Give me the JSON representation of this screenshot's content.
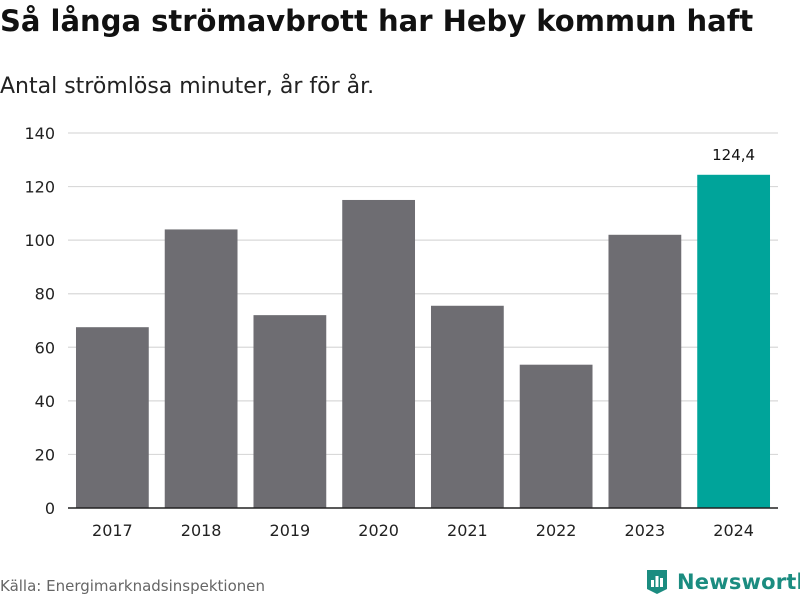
{
  "header": {
    "title": "Så långa strömavbrott har Heby kommun haft",
    "subtitle": "Antal strömlösa minuter, år för år."
  },
  "footer": {
    "source": "Källa: Energimarknadsinspektionen",
    "brand": "Newsworthy"
  },
  "colors": {
    "default_bar": "#6e6d72",
    "highlight_bar": "#00a49a",
    "grid": "#d9d9d9",
    "axis": "#222222"
  },
  "chart_data": {
    "type": "bar",
    "title": "Så långa strömavbrott har Heby kommun haft",
    "subtitle": "Antal strömlösa minuter, år för år.",
    "xlabel": "",
    "ylabel": "",
    "categories": [
      "2017",
      "2018",
      "2019",
      "2020",
      "2021",
      "2022",
      "2023",
      "2024"
    ],
    "values": [
      67.5,
      104,
      72,
      115,
      75.5,
      53.5,
      102,
      124.4
    ],
    "highlight_index": 7,
    "data_labels": [
      {
        "index": 7,
        "text": "124,4"
      }
    ],
    "ylim": [
      0,
      140
    ],
    "yticks": [
      0,
      20,
      40,
      60,
      80,
      100,
      120,
      140
    ],
    "grid": true
  }
}
